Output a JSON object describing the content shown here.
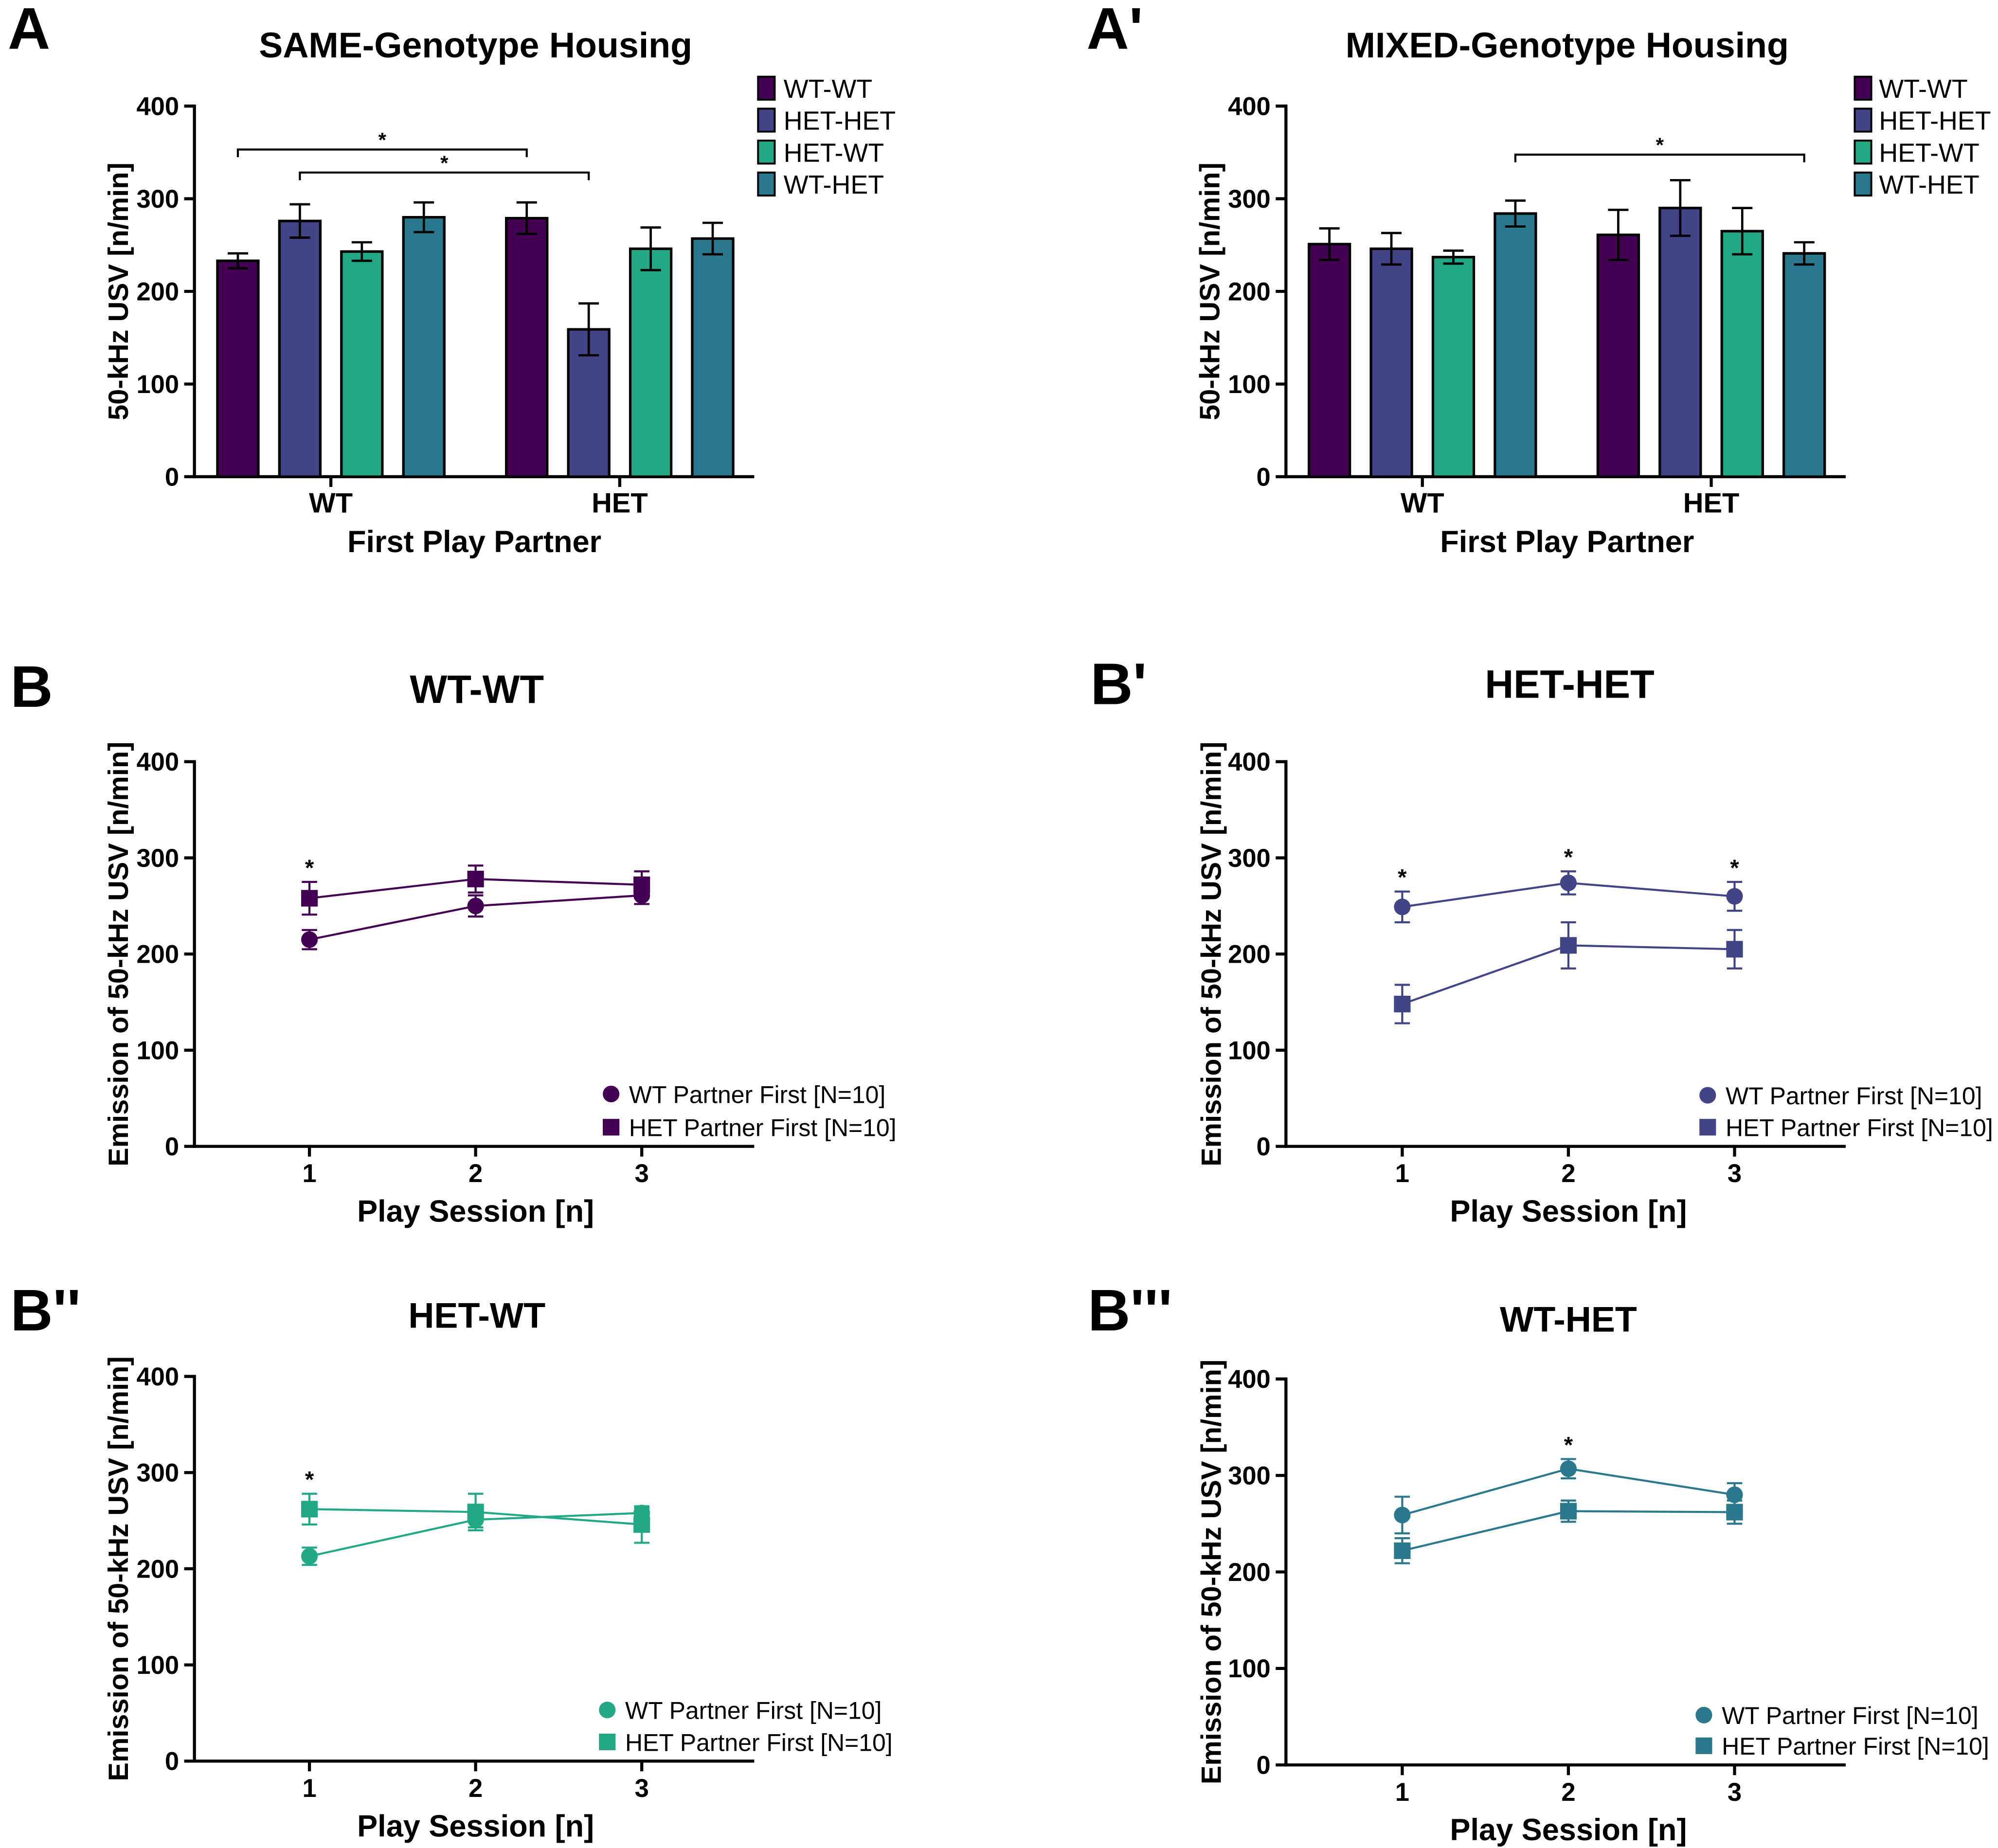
{
  "chart_data": [
    {
      "panel_label": "A",
      "type": "bar",
      "title": "SAME-Genotype Housing",
      "xlabel": "First Play Partner",
      "ylabel": "50-kHz USV [n/min]",
      "ylim": [
        0,
        400
      ],
      "y_ticks": [
        0,
        100,
        200,
        300,
        400
      ],
      "categories": [
        "WT",
        "HET"
      ],
      "legend_position": "top-right",
      "series": [
        {
          "name": "WT-WT",
          "color": "#440154",
          "values": [
            233,
            279
          ],
          "errors": [
            8,
            17
          ]
        },
        {
          "name": "HET-HET",
          "color": "#414487",
          "values": [
            276,
            159
          ],
          "errors": [
            18,
            28
          ]
        },
        {
          "name": "HET-WT",
          "color": "#22a884",
          "values": [
            243,
            246
          ],
          "errors": [
            10,
            23
          ]
        },
        {
          "name": "WT-HET",
          "color": "#2a788e",
          "values": [
            280,
            257
          ],
          "errors": [
            16,
            17
          ]
        }
      ],
      "significance": [
        {
          "from": {
            "category": 0,
            "series": 0
          },
          "to": {
            "category": 1,
            "series": 0
          },
          "label": "*"
        },
        {
          "from": {
            "category": 0,
            "series": 1
          },
          "to": {
            "category": 1,
            "series": 1
          },
          "label": "*"
        }
      ]
    },
    {
      "panel_label": "A'",
      "type": "bar",
      "title": "MIXED-Genotype Housing",
      "xlabel": "First Play Partner",
      "ylabel": "50-kHz USV [n/min]",
      "ylim": [
        0,
        400
      ],
      "y_ticks": [
        0,
        100,
        200,
        300,
        400
      ],
      "categories": [
        "WT",
        "HET"
      ],
      "legend_position": "top-right",
      "series": [
        {
          "name": "WT-WT",
          "color": "#440154",
          "values": [
            251,
            261
          ],
          "errors": [
            17,
            27
          ]
        },
        {
          "name": "HET-HET",
          "color": "#414487",
          "values": [
            246,
            290
          ],
          "errors": [
            17,
            30
          ]
        },
        {
          "name": "HET-WT",
          "color": "#22a884",
          "values": [
            237,
            265
          ],
          "errors": [
            7,
            25
          ]
        },
        {
          "name": "WT-HET",
          "color": "#2a788e",
          "values": [
            284,
            241
          ],
          "errors": [
            14,
            12
          ]
        }
      ],
      "significance": [
        {
          "from": {
            "category": 0,
            "series": 3
          },
          "to": {
            "category": 1,
            "series": 3
          },
          "label": "*"
        }
      ]
    },
    {
      "panel_label": "B",
      "type": "line",
      "title": "WT-WT",
      "xlabel": "Play Session [n]",
      "ylabel": "Emission of 50-kHz USV [n/min]",
      "x": [
        1,
        2,
        3
      ],
      "ylim": [
        0,
        400
      ],
      "y_ticks": [
        0,
        100,
        200,
        300,
        400
      ],
      "color": "#440154",
      "legend_position": "bottom-right",
      "series": [
        {
          "name": "WT Partner First [N=10]",
          "marker": "circle",
          "values": [
            215,
            250,
            261
          ],
          "errors": [
            10,
            11,
            9
          ]
        },
        {
          "name": "HET Partner First [N=10]",
          "marker": "square",
          "values": [
            258,
            278,
            272
          ],
          "errors": [
            17,
            14,
            14
          ]
        }
      ],
      "significance": [
        {
          "x": 1,
          "label": "*"
        }
      ]
    },
    {
      "panel_label": "B'",
      "type": "line",
      "title": "HET-HET",
      "xlabel": "Play Session [n]",
      "ylabel": "Emission of 50-kHz USV [n/min]",
      "x": [
        1,
        2,
        3
      ],
      "ylim": [
        0,
        400
      ],
      "y_ticks": [
        0,
        100,
        200,
        300,
        400
      ],
      "color": "#414487",
      "legend_position": "bottom-right",
      "series": [
        {
          "name": "WT Partner First [N=10]",
          "marker": "circle",
          "values": [
            249,
            274,
            260
          ],
          "errors": [
            16,
            12,
            15
          ]
        },
        {
          "name": "HET Partner First [N=10]",
          "marker": "square",
          "values": [
            148,
            209,
            205
          ],
          "errors": [
            20,
            24,
            20
          ]
        }
      ],
      "significance": [
        {
          "x": 1,
          "label": "*"
        },
        {
          "x": 2,
          "label": "*"
        },
        {
          "x": 3,
          "label": "*"
        }
      ]
    },
    {
      "panel_label": "B''",
      "type": "line",
      "title": "HET-WT",
      "xlabel": "Play Session [n]",
      "ylabel": "Emission of 50-kHz USV [n/min]",
      "x": [
        1,
        2,
        3
      ],
      "ylim": [
        0,
        400
      ],
      "y_ticks": [
        0,
        100,
        200,
        300,
        400
      ],
      "color": "#22a884",
      "legend_position": "bottom-right",
      "series": [
        {
          "name": "WT Partner First [N=10]",
          "marker": "circle",
          "values": [
            213,
            251,
            258
          ],
          "errors": [
            9,
            8,
            5
          ]
        },
        {
          "name": "HET Partner First [N=10]",
          "marker": "square",
          "values": [
            262,
            259,
            246
          ],
          "errors": [
            16,
            19,
            19
          ]
        }
      ],
      "significance": [
        {
          "x": 1,
          "label": "*"
        }
      ]
    },
    {
      "panel_label": "B'''",
      "type": "line",
      "title": "WT-HET",
      "xlabel": "Play Session [n]",
      "ylabel": "Emission of 50-kHz USV [n/min]",
      "x": [
        1,
        2,
        3
      ],
      "ylim": [
        0,
        400
      ],
      "y_ticks": [
        0,
        100,
        200,
        300,
        400
      ],
      "color": "#2a788e",
      "legend_position": "bottom-right",
      "series": [
        {
          "name": "WT Partner First [N=10]",
          "marker": "circle",
          "values": [
            259,
            307,
            280
          ],
          "errors": [
            19,
            10,
            12
          ]
        },
        {
          "name": "HET Partner First [N=10]",
          "marker": "square",
          "values": [
            222,
            263,
            262
          ],
          "errors": [
            13,
            11,
            12
          ]
        }
      ],
      "significance": [
        {
          "x": 2,
          "label": "*"
        }
      ]
    }
  ]
}
